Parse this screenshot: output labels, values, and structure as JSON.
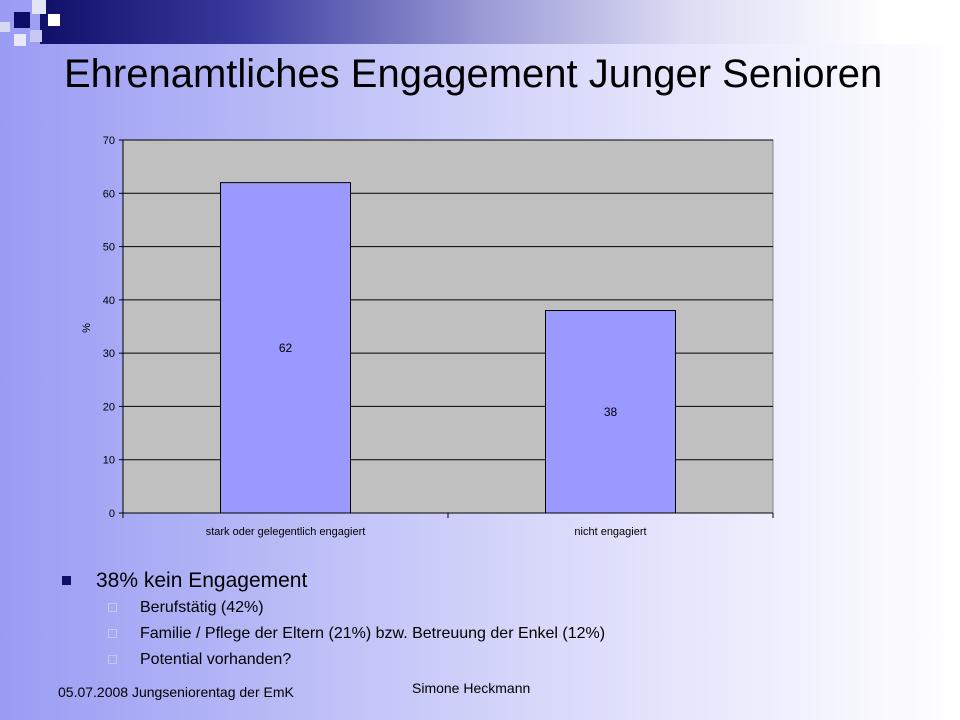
{
  "slide": {
    "title": "Ehrenamtliches Engagement Junger Senioren",
    "bullets": {
      "main": "38% kein Engagement",
      "subs": [
        "Berufstätig (42%)",
        "Familie / Pflege der Eltern (21%) bzw. Betreuung der Enkel (12%)",
        "Potential vorhanden?"
      ]
    },
    "footer": {
      "left": "05.07.2008 Jungseniorentag der EmK",
      "center": "Simone Heckmann"
    }
  },
  "colors": {
    "bar": "#9999ff",
    "plot_background": "#c0c0c0",
    "gridline": "#000000"
  },
  "chart_data": {
    "type": "bar",
    "categories": [
      "stark oder gelegentlich engagiert",
      "nicht engagiert"
    ],
    "values": [
      62,
      38
    ],
    "data_labels": [
      "62",
      "38"
    ],
    "title": "",
    "xlabel": "",
    "ylabel": "%",
    "ylim": [
      0,
      70
    ],
    "yticks": [
      0,
      10,
      20,
      30,
      40,
      50,
      60,
      70
    ],
    "grid": true,
    "legend": "none"
  }
}
